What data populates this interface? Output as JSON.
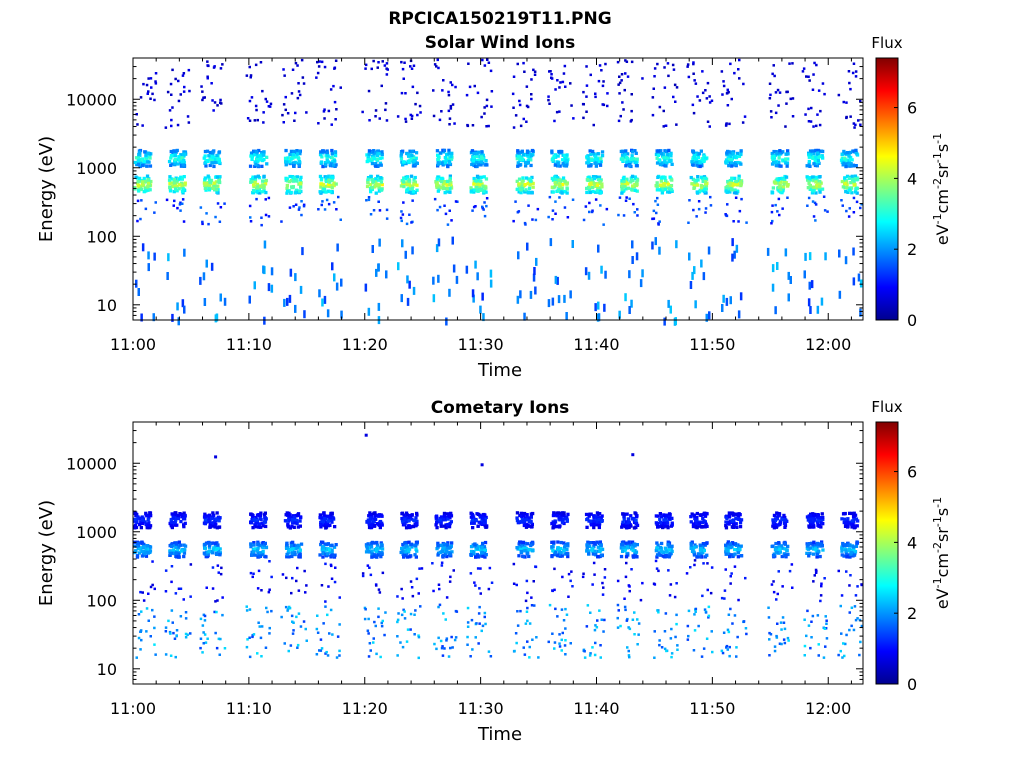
{
  "figure_title": "RPCICA150219T11.PNG",
  "chart_data": [
    {
      "type": "heatmap",
      "title": "Solar Wind Ions",
      "xlabel": "Time",
      "ylabel": "Energy (eV)",
      "y_scale": "log",
      "xlim": [
        "11:00",
        "12:03"
      ],
      "ylim": [
        6,
        40000
      ],
      "x_ticks": [
        "11:00",
        "11:10",
        "11:20",
        "11:30",
        "11:40",
        "11:50",
        "12:00"
      ],
      "y_ticks": [
        10,
        100,
        1000,
        10000
      ],
      "y_tick_labels": [
        "10",
        "100",
        "1000",
        "10000"
      ],
      "colorbar": {
        "title": "Flux",
        "label": "eV-1cm-2sr-1s-1",
        "range": [
          0,
          7.4
        ],
        "ticks": [
          0,
          2,
          4,
          6
        ],
        "colormap": "jet"
      },
      "sweep_times": [
        "11:00",
        "11:03",
        "11:06",
        "11:10",
        "11:13",
        "11:16",
        "11:20",
        "11:23",
        "11:26",
        "11:29",
        "11:33",
        "11:36",
        "11:39",
        "11:42",
        "11:45",
        "11:48",
        "11:51",
        "11:55",
        "11:58",
        "12:01"
      ],
      "features": [
        {
          "energy_range_eV": [
            450,
            800
          ],
          "peak_flux": 4.7
        },
        {
          "energy_range_eV": [
            1100,
            1900
          ],
          "peak_flux": 3.4
        },
        {
          "energy_range_eV": [
            4000,
            40000
          ],
          "peak_flux": 0.8
        },
        {
          "energy_range_eV": [
            150,
            400
          ],
          "peak_flux": 1.8
        },
        {
          "energy_range_eV": [
            6,
            100
          ],
          "peak_flux": 2.4
        }
      ]
    },
    {
      "type": "heatmap",
      "title": "Cometary Ions",
      "xlabel": "Time",
      "ylabel": "Energy (eV)",
      "y_scale": "log",
      "xlim": [
        "11:00",
        "12:03"
      ],
      "ylim": [
        6,
        40000
      ],
      "x_ticks": [
        "11:00",
        "11:10",
        "11:20",
        "11:30",
        "11:40",
        "11:50",
        "12:00"
      ],
      "y_ticks": [
        10,
        100,
        1000,
        10000
      ],
      "y_tick_labels": [
        "10",
        "100",
        "1000",
        "10000"
      ],
      "colorbar": {
        "title": "Flux",
        "label": "eV-1cm-2sr-1s-1",
        "range": [
          0,
          7.4
        ],
        "ticks": [
          0,
          2,
          4,
          6
        ],
        "colormap": "jet"
      },
      "sweep_times": [
        "11:00",
        "11:03",
        "11:06",
        "11:10",
        "11:13",
        "11:16",
        "11:20",
        "11:23",
        "11:26",
        "11:29",
        "11:33",
        "11:36",
        "11:39",
        "11:42",
        "11:45",
        "11:48",
        "11:51",
        "11:55",
        "11:58",
        "12:01"
      ],
      "features": [
        {
          "energy_range_eV": [
            450,
            750
          ],
          "peak_flux": 2.7
        },
        {
          "energy_range_eV": [
            1200,
            2000
          ],
          "peak_flux": 1.4
        },
        {
          "energy_range_eV": [
            15,
            90
          ],
          "peak_flux": 2.6
        },
        {
          "energy_range_eV": [
            100,
            400
          ],
          "peak_flux": 1.2
        }
      ],
      "isolated_points": [
        {
          "time": "11:07",
          "energy_eV": 13000,
          "flux": 0.7
        },
        {
          "time": "11:20",
          "energy_eV": 27000,
          "flux": 0.7
        },
        {
          "time": "11:30",
          "energy_eV": 10000,
          "flux": 0.7
        },
        {
          "time": "11:43",
          "energy_eV": 14000,
          "flux": 0.7
        }
      ]
    }
  ]
}
